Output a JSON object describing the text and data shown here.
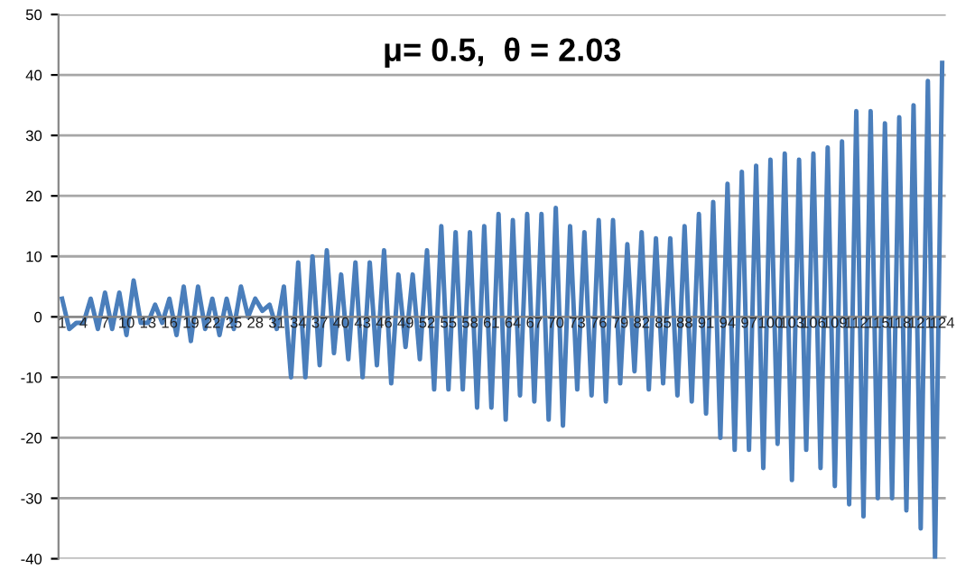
{
  "chart_data": {
    "type": "line",
    "title": "μ= 0.5,  θ = 2.03",
    "categories": [
      "1",
      null,
      null,
      "4",
      null,
      null,
      "7",
      null,
      null,
      "10",
      null,
      null,
      "13",
      null,
      null,
      "16",
      null,
      null,
      "19",
      null,
      null,
      "22",
      null,
      null,
      "25",
      null,
      null,
      "28",
      null,
      null,
      "31",
      null,
      null,
      "34",
      null,
      null,
      "37",
      null,
      null,
      "40",
      null,
      null,
      "43",
      null,
      null,
      "46",
      null,
      null,
      "49",
      null,
      null,
      "52",
      null,
      null,
      "55",
      null,
      null,
      "58",
      null,
      null,
      "61",
      null,
      null,
      "64",
      null,
      null,
      "67",
      null,
      null,
      "70",
      null,
      null,
      "73",
      null,
      null,
      "76",
      null,
      null,
      "79",
      null,
      null,
      "82",
      null,
      null,
      "85",
      null,
      null,
      "88",
      null,
      null,
      "91",
      null,
      null,
      "94",
      null,
      null,
      "97",
      null,
      null,
      "100",
      null,
      null,
      "103",
      null,
      null,
      "106",
      null,
      null,
      "109",
      null,
      null,
      "112",
      null,
      null,
      "115",
      null,
      null,
      "118",
      null,
      null,
      "121",
      null,
      null,
      "124"
    ],
    "series": [
      {
        "color": "#4a7ebb",
        "values": [
          3,
          -2,
          -1,
          -1,
          3,
          -2,
          4,
          -2,
          4,
          -3,
          6,
          -1,
          -1,
          2,
          -1,
          3,
          -3,
          5,
          -4,
          5,
          -2,
          3,
          -3,
          3,
          -2,
          5,
          0,
          3,
          1,
          2,
          -2,
          5,
          -10,
          9,
          -10,
          10,
          -8,
          11,
          -6,
          7,
          -7,
          9,
          -10,
          9,
          -8,
          11,
          -11,
          7,
          -5,
          7,
          -7,
          11,
          -12,
          15,
          -12,
          14,
          -12,
          14,
          -15,
          15,
          -15,
          17,
          -17,
          16,
          -13,
          17,
          -14,
          17,
          -17,
          18,
          -18,
          15,
          -12,
          14,
          -13,
          16,
          -14,
          16,
          -11,
          12,
          -9,
          14,
          -12,
          13,
          -11,
          13,
          -13,
          15,
          -14,
          17,
          -16,
          19,
          -20,
          22,
          -22,
          24,
          -22,
          25,
          -25,
          26,
          -21,
          27,
          -27,
          26,
          -22,
          27,
          -25,
          28,
          -28,
          29,
          -31,
          34,
          -33,
          34,
          -30,
          32,
          -30,
          33,
          -32,
          35,
          -35,
          39,
          -40,
          42
        ]
      }
    ],
    "ylim": [
      -40,
      50
    ],
    "yticks": [
      -40,
      -30,
      -20,
      -10,
      0,
      10,
      20,
      30,
      40,
      50
    ],
    "grid": "y",
    "legend": false,
    "marker": "none",
    "line_style": "solid"
  }
}
